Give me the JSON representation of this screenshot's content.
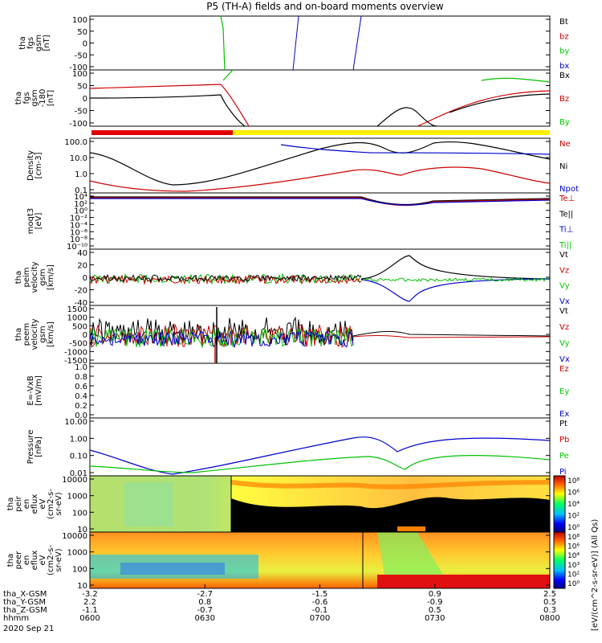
{
  "figure": {
    "title": "P5 (TH-A) fields and on-board moments overview"
  },
  "chart_data": [
    {
      "type": "line",
      "ylabel": [
        "tha",
        "fgs",
        "gsm",
        "[nT]"
      ],
      "yticks": [
        100,
        50,
        0,
        -50,
        -100
      ],
      "ylim": [
        -100,
        100
      ],
      "legend": [
        {
          "name": "Bt",
          "color": "#000000"
        },
        {
          "name": "bz",
          "color": "#cc0000"
        },
        {
          "name": "by",
          "color": "#00cc00"
        },
        {
          "name": "bx",
          "color": "#0000cc"
        }
      ]
    },
    {
      "type": "line",
      "ylabel": [
        "tha",
        "fgs",
        "gsm",
        "-180",
        "[nT]"
      ],
      "yticks": [
        100,
        50,
        0,
        -50,
        -100
      ],
      "ylim": [
        -120,
        100
      ],
      "legend": [
        {
          "name": "Bx",
          "color": "#000000"
        },
        {
          "name": "Bz",
          "color": "#cc0000"
        },
        {
          "name": "By",
          "color": "#00cc00"
        }
      ]
    },
    {
      "type": "line",
      "ylabel": [
        "Density",
        "[cm-3]"
      ],
      "yticks": [
        "100.0",
        "10.0",
        "1.0",
        "0.1"
      ],
      "yscale": "log",
      "ylim": [
        0.03,
        200
      ],
      "legend": [
        {
          "name": "Ne",
          "color": "#cc0000"
        },
        {
          "name": "Ni",
          "color": "#000000"
        },
        {
          "name": "Npot",
          "color": "#0000cc"
        }
      ]
    },
    {
      "type": "line",
      "ylabel": [
        "moqt3",
        "[eV]"
      ],
      "yticks": [
        "10⁴",
        "10²",
        "10⁰",
        "10⁻²",
        "10⁻⁴",
        "10⁻⁶",
        "10⁻⁸",
        "10⁻¹⁰"
      ],
      "yscale": "log",
      "legend": [
        {
          "name": "Te⊥",
          "color": "#cc0000"
        },
        {
          "name": "Te||",
          "color": "#000000"
        },
        {
          "name": "Ti⊥",
          "color": "#0000cc"
        },
        {
          "name": "Ti||",
          "color": "#00cc00"
        }
      ]
    },
    {
      "type": "line",
      "ylabel": [
        "tha",
        "peim",
        "velocity",
        "gsm",
        "[km/s]"
      ],
      "yticks": [
        40,
        20,
        0,
        -20,
        -40
      ],
      "ylim": [
        -40,
        40
      ],
      "legend": [
        {
          "name": "Vt",
          "color": "#000000"
        },
        {
          "name": "Vz",
          "color": "#cc0000"
        },
        {
          "name": "Vy",
          "color": "#00cc00"
        },
        {
          "name": "Vx",
          "color": "#0000cc"
        }
      ]
    },
    {
      "type": "line",
      "ylabel": [
        "tha",
        "peem",
        "velocity",
        "gsm",
        "[km/s]"
      ],
      "yticks": [
        1500,
        1000,
        500,
        0,
        -500,
        -1000,
        -1500
      ],
      "ylim": [
        -1500,
        1500
      ],
      "legend": [
        {
          "name": "Vt",
          "color": "#000000"
        },
        {
          "name": "Vz",
          "color": "#cc0000"
        },
        {
          "name": "Vy",
          "color": "#00cc00"
        },
        {
          "name": "Vx",
          "color": "#0000cc"
        }
      ]
    },
    {
      "type": "line",
      "ylabel": [
        "E=-VxB",
        "[mV/m]"
      ],
      "yticks": [
        "1.0",
        "0.8",
        "0.6",
        "0.4",
        "0.2",
        "0.0"
      ],
      "ylim": [
        0,
        1
      ],
      "legend": [
        {
          "name": "Ez",
          "color": "#cc0000"
        },
        {
          "name": "Ey",
          "color": "#00cc00"
        },
        {
          "name": "Ex",
          "color": "#0000cc"
        }
      ]
    },
    {
      "type": "line",
      "ylabel": [
        "Pressure",
        "[nPa]"
      ],
      "yticks": [
        "10.00",
        "1.00",
        "0.10",
        "0.01"
      ],
      "yscale": "log",
      "legend": [
        {
          "name": "Pt",
          "color": "#000000"
        },
        {
          "name": "Pb",
          "color": "#cc0000"
        },
        {
          "name": "Pe",
          "color": "#00cc00"
        },
        {
          "name": "Pi",
          "color": "#0000cc"
        }
      ]
    },
    {
      "type": "heatmap",
      "ylabel": [
        "tha",
        "peir",
        "en",
        "eflux",
        "eV",
        "(cm2-s-",
        "sr-eV)"
      ],
      "yticks": [
        "10000",
        "1000",
        "100",
        "10"
      ],
      "yscale": "log"
    },
    {
      "type": "heatmap",
      "ylabel": [
        "tha",
        "peer",
        "en",
        "eflux",
        "eV",
        "(cm2-s-",
        "sr-eV)"
      ],
      "yticks": [
        "10000",
        "1000",
        "100",
        "10"
      ],
      "yscale": "log"
    }
  ],
  "colorbar": {
    "label": "[eV/(cm^2-s-sr-eV)] (All Qs)",
    "ticks_upper": [
      "10⁸",
      "10⁶",
      "10⁴",
      "10²",
      "10⁰"
    ],
    "ticks_lower": [
      "10⁸",
      "10⁶",
      "10⁴",
      "10³",
      "10²",
      "10⁰"
    ]
  },
  "xaxis": {
    "row_labels": [
      "tha_X-GSM",
      "tha_Y-GSM",
      "tha_Z-GSM",
      "hhmm",
      "2020 Sep 21"
    ],
    "columns": [
      {
        "x": "-3.2",
        "y": "2.2",
        "z": "-1.1",
        "hhmm": "0600"
      },
      {
        "x": "-2.7",
        "y": "0.8",
        "z": "-0.7",
        "hhmm": "0630"
      },
      {
        "x": "-1.5",
        "y": "-0.6",
        "z": "-0.1",
        "hhmm": "0700"
      },
      {
        "x": "0.9",
        "y": "-0.9",
        "z": "0.5",
        "hhmm": "0730"
      },
      {
        "x": "2.5",
        "y": "0.5",
        "z": "0.3",
        "hhmm": "0800"
      }
    ]
  }
}
